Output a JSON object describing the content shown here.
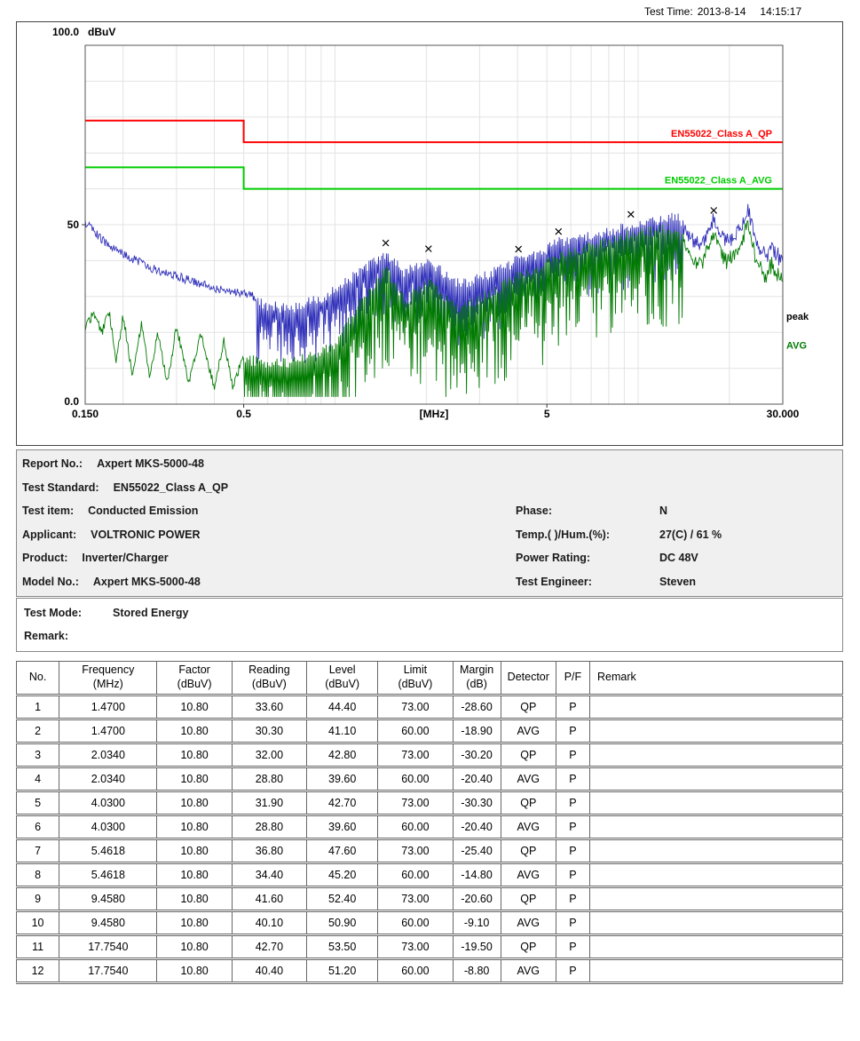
{
  "header": {
    "test_time_label": "Test Time:",
    "test_date": "2013-8-14",
    "test_clock": "14:15:17"
  },
  "chart_data": {
    "type": "line",
    "title": "",
    "x_axis": {
      "scale": "log",
      "min": 0.15,
      "max": 30,
      "unit_label": "[MHz]",
      "ticks": [
        {
          "f": 0.15,
          "label": "0.150"
        },
        {
          "f": 0.5,
          "label": "0.5"
        },
        {
          "f": 5,
          "label": "5"
        },
        {
          "f": 30,
          "label": "30.000"
        }
      ]
    },
    "y_axis": {
      "min": 0,
      "max": 100,
      "unit_label": "dBuV",
      "ticks": [
        {
          "v": 100,
          "label": "100.0"
        },
        {
          "v": 50,
          "label": "50"
        },
        {
          "v": 0,
          "label": "0.0"
        }
      ]
    },
    "limit_lines": [
      {
        "name": "EN55022_Class A_QP",
        "color": "#ff0000",
        "points": [
          [
            0.15,
            79
          ],
          [
            0.5,
            79
          ],
          [
            0.5,
            73
          ],
          [
            30,
            73
          ]
        ]
      },
      {
        "name": "EN55022_Class A_AVG",
        "color": "#00cc00",
        "points": [
          [
            0.15,
            66
          ],
          [
            0.5,
            66
          ],
          [
            0.5,
            60
          ],
          [
            30,
            60
          ]
        ]
      }
    ],
    "traces": [
      {
        "name": "peak",
        "color": "#3333bb",
        "comb_region": [
          0.55,
          14
        ],
        "comb_depth": [
          6,
          20
        ],
        "envelope": [
          [
            0.15,
            52
          ],
          [
            0.17,
            47
          ],
          [
            0.2,
            43
          ],
          [
            0.25,
            39
          ],
          [
            0.3,
            37
          ],
          [
            0.35,
            35
          ],
          [
            0.4,
            33.5
          ],
          [
            0.5,
            32
          ],
          [
            0.6,
            30
          ],
          [
            0.7,
            29
          ],
          [
            0.8,
            30.5
          ],
          [
            0.9,
            32
          ],
          [
            1.0,
            34.5
          ],
          [
            1.2,
            39
          ],
          [
            1.47,
            44.4
          ],
          [
            1.7,
            39
          ],
          [
            2.034,
            42.8
          ],
          [
            2.3,
            38.5
          ],
          [
            2.6,
            36
          ],
          [
            3.2,
            38.5
          ],
          [
            4.03,
            42.7
          ],
          [
            4.7,
            44.5
          ],
          [
            5.4618,
            47.6
          ],
          [
            6.5,
            49
          ],
          [
            7.5,
            50
          ],
          [
            8.5,
            51
          ],
          [
            9.458,
            52.4
          ],
          [
            10.5,
            53
          ],
          [
            12,
            54
          ],
          [
            13.5,
            55
          ],
          [
            14.5,
            50
          ],
          [
            15.5,
            46.5
          ],
          [
            16.5,
            48.5
          ],
          [
            17.754,
            54
          ],
          [
            18.5,
            50.5
          ],
          [
            19.5,
            47.5
          ],
          [
            21,
            49
          ],
          [
            22,
            52
          ],
          [
            23,
            57
          ],
          [
            23.8,
            52
          ],
          [
            24.5,
            47.5
          ],
          [
            25.5,
            44.5
          ],
          [
            26.5,
            43.5
          ],
          [
            27.5,
            46
          ],
          [
            28.5,
            44
          ],
          [
            30,
            43
          ]
        ]
      },
      {
        "name": "AVG",
        "color": "#007a00",
        "comb_region": [
          0.5,
          14
        ],
        "comb_depth": [
          8,
          30
        ],
        "envelope": [
          [
            0.15,
            22
          ],
          [
            0.16,
            27
          ],
          [
            0.17,
            21
          ],
          [
            0.18,
            27
          ],
          [
            0.19,
            13
          ],
          [
            0.2,
            26
          ],
          [
            0.215,
            9
          ],
          [
            0.23,
            24
          ],
          [
            0.245,
            8
          ],
          [
            0.26,
            21
          ],
          [
            0.28,
            7
          ],
          [
            0.3,
            23
          ],
          [
            0.33,
            7
          ],
          [
            0.36,
            21
          ],
          [
            0.4,
            6
          ],
          [
            0.43,
            19
          ],
          [
            0.46,
            6
          ],
          [
            0.5,
            15
          ],
          [
            0.6,
            14
          ],
          [
            0.7,
            14
          ],
          [
            0.85,
            16
          ],
          [
            1.0,
            19
          ],
          [
            1.2,
            30
          ],
          [
            1.47,
            40
          ],
          [
            1.7,
            31
          ],
          [
            2.034,
            37
          ],
          [
            2.3,
            32
          ],
          [
            2.6,
            29
          ],
          [
            3.2,
            33
          ],
          [
            4.03,
            38.5
          ],
          [
            4.7,
            40
          ],
          [
            5.4618,
            44
          ],
          [
            6.5,
            45.5
          ],
          [
            7.5,
            47
          ],
          [
            8.5,
            48.5
          ],
          [
            9.458,
            50
          ],
          [
            10.5,
            50.5
          ],
          [
            12,
            51
          ],
          [
            13.5,
            51
          ],
          [
            14.5,
            45
          ],
          [
            15.5,
            41
          ],
          [
            16.5,
            43.5
          ],
          [
            17.754,
            50
          ],
          [
            18.5,
            45.5
          ],
          [
            19.5,
            42.5
          ],
          [
            21,
            44
          ],
          [
            22,
            47.5
          ],
          [
            23,
            53
          ],
          [
            23.8,
            47
          ],
          [
            24.5,
            42.5
          ],
          [
            25.5,
            39.5
          ],
          [
            26.5,
            38
          ],
          [
            27.5,
            41.5
          ],
          [
            28.5,
            39
          ],
          [
            30,
            37
          ]
        ]
      }
    ],
    "markers": {
      "symbol": "x",
      "points": [
        {
          "freq": 1.47,
          "level": 44.4
        },
        {
          "freq": 2.034,
          "level": 42.8
        },
        {
          "freq": 4.03,
          "level": 42.7
        },
        {
          "freq": 5.4618,
          "level": 47.6
        },
        {
          "freq": 9.458,
          "level": 52.4
        },
        {
          "freq": 17.754,
          "level": 53.5
        }
      ]
    }
  },
  "info": {
    "rows": [
      {
        "label": "Report No.:",
        "value": "Axpert MKS-5000-48"
      },
      {
        "label": "Test Standard:",
        "value": "EN55022_Class A_QP"
      },
      {
        "label": "Test item:",
        "value": "Conducted Emission",
        "label2": "Phase:",
        "value2": "N"
      },
      {
        "label": "Applicant:",
        "value": "VOLTRONIC POWER",
        "label2": "Temp.( )/Hum.(%):",
        "value2": "27(C) / 61 %"
      },
      {
        "label": "Product:",
        "value": "Inverter/Charger",
        "label2": "Power Rating:",
        "value2": "DC 48V"
      },
      {
        "label": "Model No.:",
        "value": "Axpert MKS-5000-48",
        "label2": "Test Engineer:",
        "value2": "Steven"
      }
    ]
  },
  "mode": {
    "rows": [
      {
        "label": "Test Mode:",
        "value": "Stored Energy"
      },
      {
        "label": "Remark:",
        "value": ""
      }
    ]
  },
  "table": {
    "headers": [
      "No.",
      "Frequency\n(MHz)",
      "Factor\n(dBuV)",
      "Reading\n(dBuV)",
      "Level\n(dBuV)",
      "Limit\n(dBuV)",
      "Margin\n(dB)",
      "Detector",
      "P/F",
      "Remark"
    ],
    "rows": [
      [
        "1",
        "1.4700",
        "10.80",
        "33.60",
        "44.40",
        "73.00",
        "-28.60",
        "QP",
        "P",
        ""
      ],
      [
        "2",
        "1.4700",
        "10.80",
        "30.30",
        "41.10",
        "60.00",
        "-18.90",
        "AVG",
        "P",
        ""
      ],
      [
        "3",
        "2.0340",
        "10.80",
        "32.00",
        "42.80",
        "73.00",
        "-30.20",
        "QP",
        "P",
        ""
      ],
      [
        "4",
        "2.0340",
        "10.80",
        "28.80",
        "39.60",
        "60.00",
        "-20.40",
        "AVG",
        "P",
        ""
      ],
      [
        "5",
        "4.0300",
        "10.80",
        "31.90",
        "42.70",
        "73.00",
        "-30.30",
        "QP",
        "P",
        ""
      ],
      [
        "6",
        "4.0300",
        "10.80",
        "28.80",
        "39.60",
        "60.00",
        "-20.40",
        "AVG",
        "P",
        ""
      ],
      [
        "7",
        "5.4618",
        "10.80",
        "36.80",
        "47.60",
        "73.00",
        "-25.40",
        "QP",
        "P",
        ""
      ],
      [
        "8",
        "5.4618",
        "10.80",
        "34.40",
        "45.20",
        "60.00",
        "-14.80",
        "AVG",
        "P",
        ""
      ],
      [
        "9",
        "9.4580",
        "10.80",
        "41.60",
        "52.40",
        "73.00",
        "-20.60",
        "QP",
        "P",
        ""
      ],
      [
        "10",
        "9.4580",
        "10.80",
        "40.10",
        "50.90",
        "60.00",
        "-9.10",
        "AVG",
        "P",
        ""
      ],
      [
        "11",
        "17.7540",
        "10.80",
        "42.70",
        "53.50",
        "73.00",
        "-19.50",
        "QP",
        "P",
        ""
      ],
      [
        "12",
        "17.7540",
        "10.80",
        "40.40",
        "51.20",
        "60.00",
        "-8.80",
        "AVG",
        "P",
        ""
      ]
    ]
  }
}
